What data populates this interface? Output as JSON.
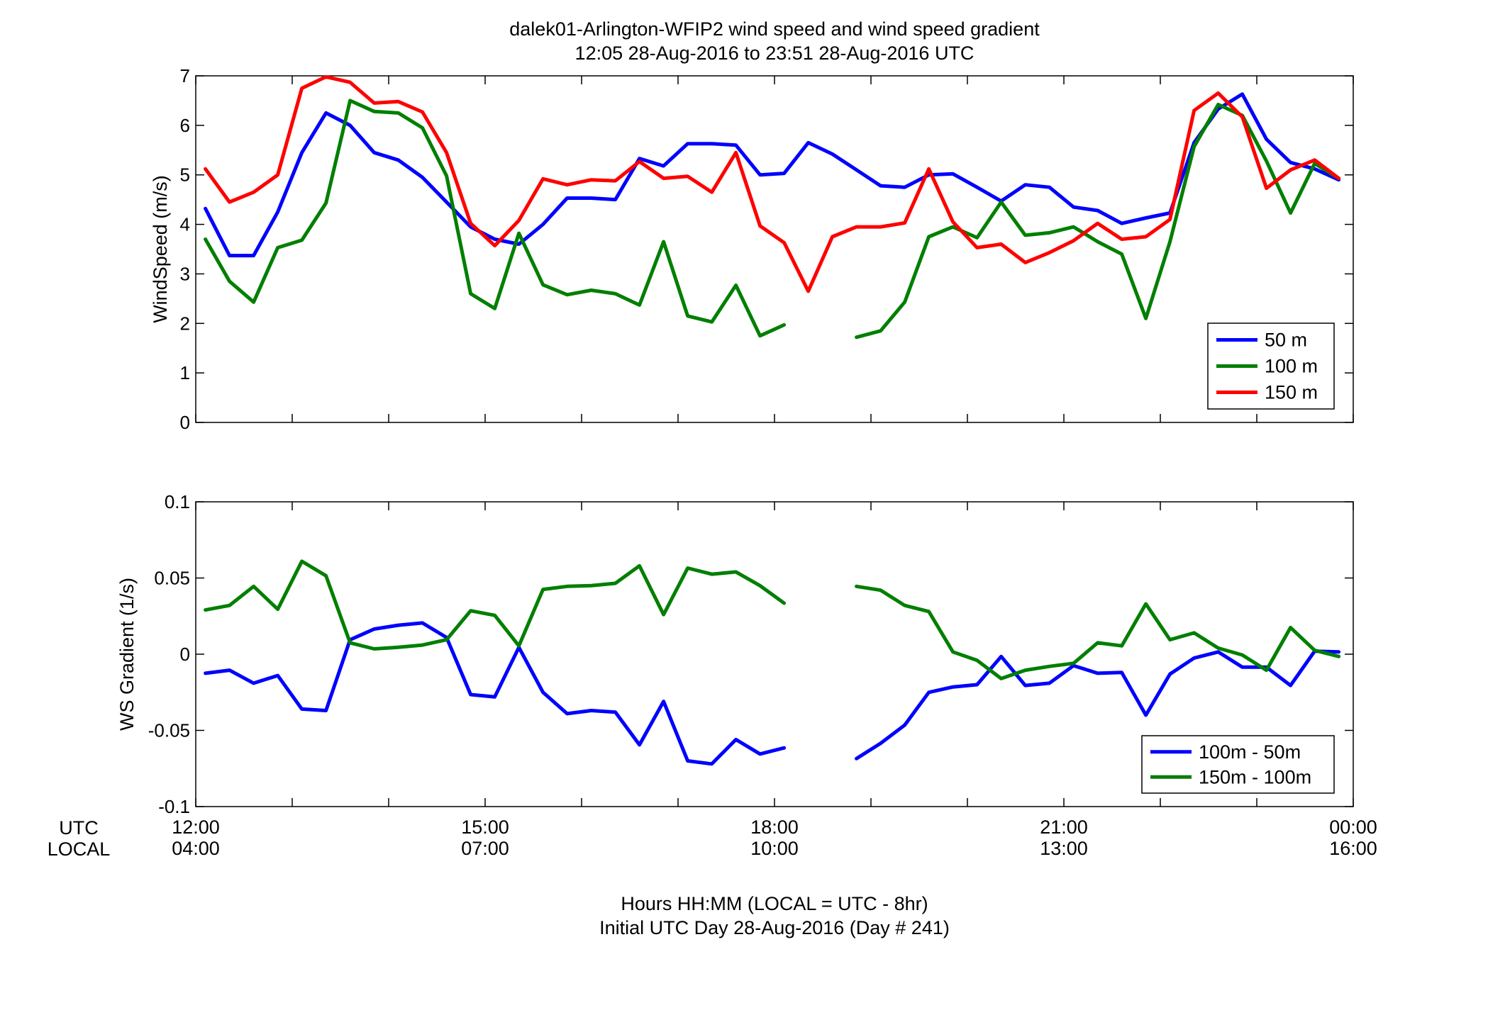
{
  "figure": {
    "title_line1": "dalek01-Arlington-WFIP2  wind speed and wind speed gradient",
    "title_line2": "12:05 28-Aug-2016 to 23:51 28-Aug-2016  UTC",
    "xlabel_line1": "Hours HH:MM  (LOCAL = UTC - 8hr)",
    "xlabel_line2": "Initial UTC Day 28-Aug-2016 (Day # 241)",
    "utc_row_label": "UTC",
    "local_row_label": "LOCAL"
  },
  "chart_data": [
    {
      "type": "line",
      "ylabel": "WindSpeed (m/s)",
      "ylim": [
        0,
        7
      ],
      "yticks": [
        0,
        1,
        2,
        3,
        4,
        5,
        6,
        7
      ],
      "xlim": [
        12.0,
        24.0
      ],
      "grid": false,
      "legend_position": "bottom-right",
      "x": [
        12.1,
        12.35,
        12.6,
        12.85,
        13.1,
        13.35,
        13.6,
        13.85,
        14.1,
        14.35,
        14.6,
        14.85,
        15.1,
        15.35,
        15.6,
        15.85,
        16.1,
        16.35,
        16.6,
        16.85,
        17.1,
        17.35,
        17.6,
        17.85,
        18.1,
        18.35,
        18.6,
        18.85,
        19.1,
        19.35,
        19.6,
        19.85,
        20.1,
        20.35,
        20.6,
        20.85,
        21.1,
        21.35,
        21.6,
        21.85,
        22.1,
        22.35,
        22.6,
        22.85,
        23.1,
        23.35,
        23.6,
        23.85
      ],
      "series": [
        {
          "name": "50 m",
          "color": "#0000ff",
          "values": [
            4.32,
            3.37,
            3.37,
            4.25,
            5.45,
            6.25,
            6.0,
            5.45,
            5.3,
            4.95,
            4.45,
            3.95,
            3.7,
            3.6,
            4.0,
            4.53,
            4.53,
            4.5,
            5.33,
            5.18,
            5.63,
            5.63,
            5.6,
            5.0,
            5.03,
            5.65,
            5.42,
            5.1,
            4.78,
            4.75,
            5.0,
            5.02,
            4.75,
            4.47,
            4.8,
            4.75,
            4.35,
            4.28,
            4.02,
            4.13,
            4.23,
            5.65,
            6.33,
            6.63,
            5.72,
            5.25,
            5.12,
            4.9
          ]
        },
        {
          "name": "100 m",
          "color": "#007f00",
          "values": [
            3.7,
            2.85,
            2.43,
            3.53,
            3.68,
            4.43,
            6.5,
            6.28,
            6.25,
            5.95,
            4.98,
            2.6,
            2.3,
            3.82,
            2.78,
            2.58,
            2.67,
            2.6,
            2.37,
            3.65,
            2.15,
            2.03,
            2.77,
            1.75,
            1.97,
            null,
            null,
            1.72,
            1.85,
            2.43,
            3.75,
            3.95,
            3.73,
            4.45,
            3.78,
            3.83,
            3.95,
            3.65,
            3.4,
            2.1,
            3.65,
            5.57,
            6.42,
            6.2,
            5.28,
            4.23,
            5.23,
            4.93
          ]
        },
        {
          "name": "150 m",
          "color": "#ff0000",
          "values": [
            5.12,
            4.45,
            4.65,
            5.0,
            6.75,
            6.98,
            6.87,
            6.45,
            6.48,
            6.27,
            5.45,
            4.02,
            3.57,
            4.08,
            4.92,
            4.8,
            4.9,
            4.88,
            5.27,
            4.93,
            4.97,
            4.65,
            5.45,
            3.97,
            3.63,
            2.65,
            3.75,
            3.95,
            3.95,
            4.03,
            5.12,
            4.05,
            3.53,
            3.6,
            3.23,
            3.43,
            3.67,
            4.02,
            3.7,
            3.75,
            4.1,
            6.3,
            6.65,
            6.17,
            4.73,
            5.1,
            5.3,
            4.93
          ]
        }
      ]
    },
    {
      "type": "line",
      "ylabel": "WS Gradient (1/s)",
      "ylim": [
        -0.1,
        0.1
      ],
      "yticks": [
        -0.1,
        -0.05,
        0,
        0.05,
        0.1
      ],
      "ytick_labels": [
        "-0.1",
        "-0.05",
        "0",
        "0.05",
        "0.1"
      ],
      "xlim": [
        12.0,
        24.0
      ],
      "xticks": [
        12,
        15,
        18,
        21,
        24
      ],
      "xtick_labels_utc": [
        "12:00",
        "15:00",
        "18:00",
        "21:00",
        "00:00"
      ],
      "xtick_labels_local": [
        "04:00",
        "07:00",
        "10:00",
        "13:00",
        "16:00"
      ],
      "grid": false,
      "legend_position": "bottom-right",
      "x": [
        12.1,
        12.35,
        12.6,
        12.85,
        13.1,
        13.35,
        13.6,
        13.85,
        14.1,
        14.35,
        14.6,
        14.85,
        15.1,
        15.35,
        15.6,
        15.85,
        16.1,
        16.35,
        16.6,
        16.85,
        17.1,
        17.35,
        17.6,
        17.85,
        18.1,
        18.35,
        18.6,
        18.85,
        19.1,
        19.35,
        19.6,
        19.85,
        20.1,
        20.35,
        20.6,
        20.85,
        21.1,
        21.35,
        21.6,
        21.85,
        22.1,
        22.35,
        22.6,
        22.85,
        23.1,
        23.35,
        23.6,
        23.85
      ],
      "series": [
        {
          "name": "100m - 50m",
          "color": "#0000ff",
          "values": [
            -0.0125,
            -0.0105,
            -0.019,
            -0.014,
            -0.036,
            -0.037,
            0.0095,
            0.0165,
            0.019,
            0.0205,
            0.011,
            -0.0265,
            -0.028,
            0.0045,
            -0.025,
            -0.039,
            -0.037,
            -0.038,
            -0.0595,
            -0.031,
            -0.07,
            -0.072,
            -0.056,
            -0.0655,
            -0.0615,
            null,
            null,
            -0.0685,
            -0.0585,
            -0.0465,
            -0.025,
            -0.0215,
            -0.02,
            -0.0015,
            -0.0205,
            -0.019,
            -0.0075,
            -0.0125,
            -0.012,
            -0.04,
            -0.013,
            -0.0025,
            0.0015,
            -0.0085,
            -0.0085,
            -0.0205,
            0.002,
            0.0015
          ]
        },
        {
          "name": "150m - 100m",
          "color": "#007f00",
          "values": [
            0.029,
            0.032,
            0.0445,
            0.0295,
            0.061,
            0.0515,
            0.0075,
            0.0035,
            0.0045,
            0.006,
            0.0095,
            0.0285,
            0.0255,
            0.0055,
            0.0425,
            0.0445,
            0.045,
            0.0465,
            0.058,
            0.026,
            0.0565,
            0.0525,
            0.054,
            0.045,
            0.0335,
            null,
            null,
            0.0445,
            0.042,
            0.032,
            0.028,
            0.0015,
            -0.004,
            -0.016,
            -0.0105,
            -0.008,
            -0.006,
            0.0075,
            0.0055,
            0.033,
            0.0095,
            0.014,
            0.004,
            -0.0005,
            -0.0105,
            0.0175,
            0.0025,
            -0.0015
          ]
        }
      ]
    }
  ]
}
